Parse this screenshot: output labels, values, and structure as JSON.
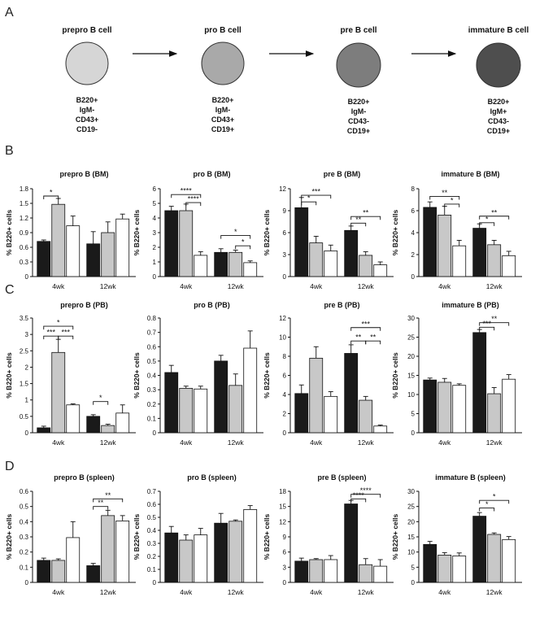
{
  "panel_labels": {
    "A": "A",
    "B": "B",
    "C": "C",
    "D": "D"
  },
  "stages": [
    {
      "title": "prepro B cell",
      "color": "#d6d6d6",
      "markers": [
        "B220+",
        "IgM-",
        "CD43+",
        "CD19-"
      ]
    },
    {
      "title": "pro B cell",
      "color": "#a9a9a9",
      "markers": [
        "B220+",
        "IgM-",
        "CD43+",
        "CD19+"
      ]
    },
    {
      "title": "pre B cell",
      "color": "#7d7d7d",
      "markers": [
        "B220+",
        "IgM-",
        "CD43-",
        "CD19+"
      ]
    },
    {
      "title": "immature B cell",
      "color": "#4e4e4e",
      "markers": [
        "B220+",
        "IgM+",
        "CD43-",
        "CD19+"
      ]
    }
  ],
  "series_colors": [
    "#1a1a1a",
    "#c8c8c8",
    "#ffffff"
  ],
  "chart_data": [
    {
      "type": "bar",
      "row": "B",
      "title": "prepro B (BM)",
      "ylabel": "% B220+ cells",
      "categories": [
        "4wk",
        "12wk"
      ],
      "ylim": [
        0,
        1.8
      ],
      "yticks": [
        "0",
        "0.3",
        "0.6",
        "0.9",
        "1.2",
        "1.5",
        "1.8"
      ],
      "series": [
        {
          "values": [
            0.72,
            0.67
          ],
          "errors": [
            0.03,
            0.25
          ]
        },
        {
          "values": [
            1.48,
            0.9
          ],
          "errors": [
            0.12,
            0.22
          ]
        },
        {
          "values": [
            1.04,
            1.18
          ],
          "errors": [
            0.2,
            0.1
          ]
        }
      ],
      "sig": [
        {
          "cat": 0,
          "from": 0,
          "to": 1,
          "y": 1.65,
          "label": "*"
        }
      ]
    },
    {
      "type": "bar",
      "row": "B",
      "title": "pro B (BM)",
      "ylabel": "% B220+ cells",
      "categories": [
        "4wk",
        "12wk"
      ],
      "ylim": [
        0,
        6
      ],
      "yticks": [
        "0",
        "1",
        "2",
        "3",
        "4",
        "5",
        "6"
      ],
      "series": [
        {
          "values": [
            4.5,
            1.65
          ],
          "errors": [
            0.3,
            0.25
          ]
        },
        {
          "values": [
            4.5,
            1.65
          ],
          "errors": [
            0.45,
            0.15
          ]
        },
        {
          "values": [
            1.45,
            0.95
          ],
          "errors": [
            0.25,
            0.12
          ]
        }
      ],
      "sig": [
        {
          "cat": 0,
          "from": 0,
          "to": 2,
          "y": 5.6,
          "label": "****"
        },
        {
          "cat": 0,
          "from": 1,
          "to": 2,
          "y": 5.05,
          "label": "****"
        },
        {
          "cat": 1,
          "from": 0,
          "to": 2,
          "y": 2.8,
          "label": "*"
        },
        {
          "cat": 1,
          "from": 1,
          "to": 2,
          "y": 2.1,
          "label": "*"
        }
      ]
    },
    {
      "type": "bar",
      "row": "B",
      "title": "pre B (BM)",
      "ylabel": "% B220+ cells",
      "categories": [
        "4wk",
        "12wk"
      ],
      "ylim": [
        0,
        12
      ],
      "yticks": [
        "0",
        "3",
        "6",
        "9",
        "12"
      ],
      "series": [
        {
          "values": [
            9.4,
            6.3
          ],
          "errors": [
            1.4,
            0.6
          ]
        },
        {
          "values": [
            4.6,
            2.9
          ],
          "errors": [
            0.9,
            0.5
          ]
        },
        {
          "values": [
            3.5,
            1.6
          ],
          "errors": [
            0.8,
            0.4
          ]
        }
      ],
      "sig": [
        {
          "cat": 0,
          "from": 0,
          "to": 2,
          "y": 11.1,
          "label": "***"
        },
        {
          "cat": 0,
          "from": 0,
          "to": 1,
          "y": 10.2,
          "label": "*"
        },
        {
          "cat": 1,
          "from": 0,
          "to": 2,
          "y": 8.2,
          "label": "**"
        },
        {
          "cat": 1,
          "from": 0,
          "to": 1,
          "y": 7.3,
          "label": "**"
        }
      ]
    },
    {
      "type": "bar",
      "row": "B",
      "title": "immature B (BM)",
      "ylabel": "% B220+ cells",
      "categories": [
        "4wk",
        "12wk"
      ],
      "ylim": [
        0,
        8
      ],
      "yticks": [
        "0",
        "2",
        "4",
        "6",
        "8"
      ],
      "series": [
        {
          "values": [
            6.3,
            4.4
          ],
          "errors": [
            0.5,
            0.4
          ]
        },
        {
          "values": [
            5.6,
            2.9
          ],
          "errors": [
            0.8,
            0.4
          ]
        },
        {
          "values": [
            2.8,
            1.9
          ],
          "errors": [
            0.5,
            0.4
          ]
        }
      ],
      "sig": [
        {
          "cat": 0,
          "from": 0,
          "to": 2,
          "y": 7.3,
          "label": "**"
        },
        {
          "cat": 0,
          "from": 1,
          "to": 2,
          "y": 6.6,
          "label": "*"
        },
        {
          "cat": 1,
          "from": 0,
          "to": 2,
          "y": 5.5,
          "label": "**"
        },
        {
          "cat": 1,
          "from": 0,
          "to": 1,
          "y": 4.9,
          "label": "*"
        }
      ]
    },
    {
      "type": "bar",
      "row": "C",
      "title": "prepro B (PB)",
      "ylabel": "% B220+ cells",
      "categories": [
        "4wk",
        "12wk"
      ],
      "ylim": [
        0,
        3.5
      ],
      "yticks": [
        "0",
        "0.5",
        "1",
        "1.5",
        "2",
        "2.5",
        "3",
        "3.5"
      ],
      "series": [
        {
          "values": [
            0.15,
            0.5
          ],
          "errors": [
            0.05,
            0.05
          ]
        },
        {
          "values": [
            2.45,
            0.22
          ],
          "errors": [
            0.4,
            0.04
          ]
        },
        {
          "values": [
            0.85,
            0.6
          ],
          "errors": [
            0.03,
            0.25
          ]
        }
      ],
      "sig": [
        {
          "cat": 0,
          "from": 0,
          "to": 2,
          "y": 3.25,
          "label": "*"
        },
        {
          "cat": 0,
          "from": 0,
          "to": 1,
          "y": 2.95,
          "label": "***"
        },
        {
          "cat": 0,
          "from": 1,
          "to": 2,
          "y": 2.95,
          "label": "***"
        },
        {
          "cat": 1,
          "from": 0,
          "to": 1,
          "y": 0.95,
          "label": "*"
        }
      ]
    },
    {
      "type": "bar",
      "row": "C",
      "title": "pro B (PB)",
      "ylabel": "% B220+ cells",
      "categories": [
        "4wk",
        "12wk"
      ],
      "ylim": [
        0,
        0.8
      ],
      "yticks": [
        "0",
        "0.1",
        "0.2",
        "0.3",
        "0.4",
        "0.5",
        "0.6",
        "0.7",
        "0.8"
      ],
      "series": [
        {
          "values": [
            0.42,
            0.5
          ],
          "errors": [
            0.05,
            0.04
          ]
        },
        {
          "values": [
            0.31,
            0.33
          ],
          "errors": [
            0.015,
            0.08
          ]
        },
        {
          "values": [
            0.305,
            0.59
          ],
          "errors": [
            0.02,
            0.12
          ]
        }
      ],
      "sig": []
    },
    {
      "type": "bar",
      "row": "C",
      "title": "pre B (PB)",
      "ylabel": "% B220+ cells",
      "categories": [
        "4wk",
        "12wk"
      ],
      "ylim": [
        0,
        12
      ],
      "yticks": [
        "0",
        "2",
        "4",
        "6",
        "8",
        "10",
        "12"
      ],
      "series": [
        {
          "values": [
            4.1,
            8.3
          ],
          "errors": [
            0.9,
            0.9
          ]
        },
        {
          "values": [
            7.8,
            3.4
          ],
          "errors": [
            1.2,
            0.4
          ]
        },
        {
          "values": [
            3.8,
            0.7
          ],
          "errors": [
            0.5,
            0.1
          ]
        }
      ],
      "sig": [
        {
          "cat": 1,
          "from": 0,
          "to": 2,
          "y": 11.0,
          "label": "***"
        },
        {
          "cat": 1,
          "from": 0,
          "to": 1,
          "y": 9.6,
          "label": "**"
        },
        {
          "cat": 1,
          "from": 1,
          "to": 2,
          "y": 9.6,
          "label": "**"
        }
      ]
    },
    {
      "type": "bar",
      "row": "C",
      "title": "immature B (PB)",
      "ylabel": "% B220+ cells",
      "categories": [
        "4wk",
        "12wk"
      ],
      "ylim": [
        0,
        30
      ],
      "yticks": [
        "0",
        "5",
        "10",
        "15",
        "20",
        "25",
        "30"
      ],
      "series": [
        {
          "values": [
            13.8,
            26.2
          ],
          "errors": [
            0.5,
            0.8
          ]
        },
        {
          "values": [
            13.2,
            10.2
          ],
          "errors": [
            1.0,
            1.6
          ]
        },
        {
          "values": [
            12.4,
            14.0
          ],
          "errors": [
            0.4,
            1.2
          ]
        }
      ],
      "sig": [
        {
          "cat": 1,
          "from": 0,
          "to": 2,
          "y": 28.8,
          "label": "**"
        },
        {
          "cat": 1,
          "from": 0,
          "to": 1,
          "y": 27.6,
          "label": "***"
        }
      ]
    },
    {
      "type": "bar",
      "row": "D",
      "title": "prepro B (spleen)",
      "ylabel": "% B220+ cells",
      "categories": [
        "4wk",
        "12wk"
      ],
      "ylim": [
        0,
        0.6
      ],
      "yticks": [
        "0",
        "0.1",
        "0.2",
        "0.3",
        "0.4",
        "0.5",
        "0.6"
      ],
      "series": [
        {
          "values": [
            0.145,
            0.11
          ],
          "errors": [
            0.015,
            0.015
          ]
        },
        {
          "values": [
            0.145,
            0.44
          ],
          "errors": [
            0.01,
            0.035
          ]
        },
        {
          "values": [
            0.295,
            0.405
          ],
          "errors": [
            0.105,
            0.035
          ]
        }
      ],
      "sig": [
        {
          "cat": 1,
          "from": 0,
          "to": 2,
          "y": 0.55,
          "label": "**"
        },
        {
          "cat": 1,
          "from": 0,
          "to": 1,
          "y": 0.5,
          "label": "**"
        }
      ]
    },
    {
      "type": "bar",
      "row": "D",
      "title": "pro B (spleen)",
      "ylabel": "% B220+ cells",
      "categories": [
        "4wk",
        "12wk"
      ],
      "ylim": [
        0,
        0.7
      ],
      "yticks": [
        "0",
        "0.1",
        "0.2",
        "0.3",
        "0.4",
        "0.5",
        "0.6",
        "0.7"
      ],
      "series": [
        {
          "values": [
            0.38,
            0.455
          ],
          "errors": [
            0.05,
            0.075
          ]
        },
        {
          "values": [
            0.325,
            0.47
          ],
          "errors": [
            0.04,
            0.01
          ]
        },
        {
          "values": [
            0.365,
            0.56
          ],
          "errors": [
            0.05,
            0.03
          ]
        }
      ],
      "sig": []
    },
    {
      "type": "bar",
      "row": "D",
      "title": "pre B (spleen)",
      "ylabel": "% B220+ cells",
      "categories": [
        "4wk",
        "12wk"
      ],
      "ylim": [
        0,
        18
      ],
      "yticks": [
        "0",
        "3",
        "6",
        "9",
        "12",
        "15",
        "18"
      ],
      "series": [
        {
          "values": [
            4.2,
            15.5
          ],
          "errors": [
            0.6,
            0.7
          ]
        },
        {
          "values": [
            4.5,
            3.5
          ],
          "errors": [
            0.2,
            1.2
          ]
        },
        {
          "values": [
            4.5,
            3.2
          ],
          "errors": [
            0.8,
            1.3
          ]
        }
      ],
      "sig": [
        {
          "cat": 1,
          "from": 0,
          "to": 2,
          "y": 17.4,
          "label": "****"
        },
        {
          "cat": 1,
          "from": 0,
          "to": 1,
          "y": 16.5,
          "label": "****"
        }
      ]
    },
    {
      "type": "bar",
      "row": "D",
      "title": "immature B (spleen)",
      "ylabel": "% B220+ cells",
      "categories": [
        "4wk",
        "12wk"
      ],
      "ylim": [
        0,
        30
      ],
      "yticks": [
        "0",
        "5",
        "10",
        "15",
        "20",
        "25",
        "30"
      ],
      "series": [
        {
          "values": [
            12.5,
            21.8
          ],
          "errors": [
            1.0,
            1.2
          ]
        },
        {
          "values": [
            9.0,
            15.8
          ],
          "errors": [
            0.8,
            0.5
          ]
        },
        {
          "values": [
            8.7,
            14.1
          ],
          "errors": [
            1.0,
            1.0
          ]
        }
      ],
      "sig": [
        {
          "cat": 1,
          "from": 0,
          "to": 2,
          "y": 27.0,
          "label": "*"
        },
        {
          "cat": 1,
          "from": 0,
          "to": 1,
          "y": 24.5,
          "label": "*"
        }
      ]
    }
  ]
}
